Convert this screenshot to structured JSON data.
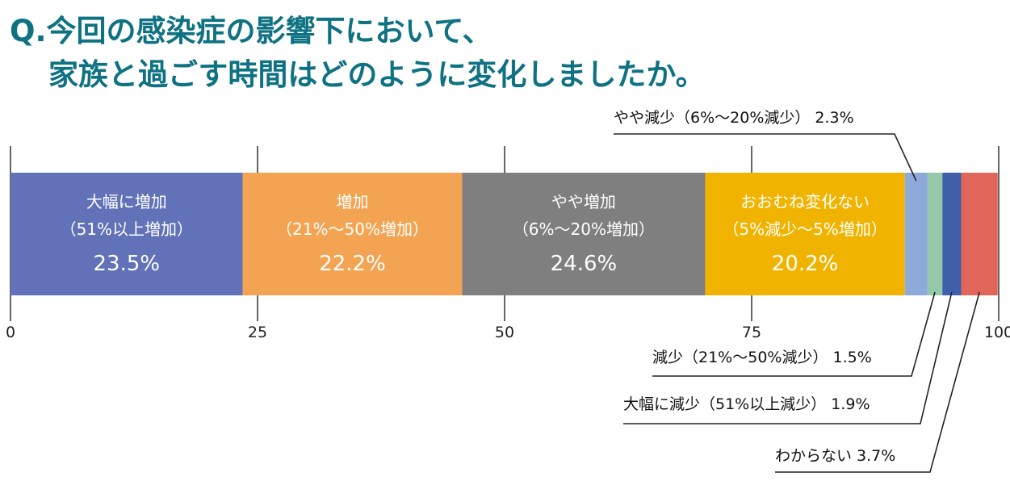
{
  "title": {
    "line1": "Q.今回の感染症の影響下において、",
    "line2": "家族と過ごす時間はどのように変化しましたか。"
  },
  "chart_data": {
    "type": "bar",
    "orientation": "horizontal-stacked",
    "xlim": [
      0,
      100
    ],
    "ticks": [
      0,
      25,
      50,
      75,
      100
    ],
    "tick_labels": [
      "0",
      "25",
      "50",
      "75",
      "100"
    ],
    "segments": [
      {
        "label_line1": "大幅に増加",
        "label_line2": "（51%以上増加）",
        "value": 23.5,
        "value_label": "23.5%",
        "color": "#6272b8"
      },
      {
        "label_line1": "増加",
        "label_line2": "（21%〜50%増加）",
        "value": 22.2,
        "value_label": "22.2%",
        "color": "#f2a452"
      },
      {
        "label_line1": "やや増加",
        "label_line2": "（6%〜20%増加）",
        "value": 24.6,
        "value_label": "24.6%",
        "color": "#7f7f7f"
      },
      {
        "label_line1": "おおむね変化ない",
        "label_line2": "（5%減少〜5%増加）",
        "value": 20.2,
        "value_label": "20.2%",
        "color": "#f0b400"
      },
      {
        "callout": "やや減少（6%〜20%減少） 2.3%",
        "value": 2.3,
        "color": "#8eaadb"
      },
      {
        "callout": "減少（21%〜50%減少） 1.5%",
        "value": 1.5,
        "color": "#95c8a8"
      },
      {
        "callout": "大幅に減少（51%以上減少） 1.9%",
        "value": 1.9,
        "color": "#3f5faa"
      },
      {
        "callout": "わからない 3.7%",
        "value": 3.7,
        "color": "#e0665a"
      }
    ]
  }
}
